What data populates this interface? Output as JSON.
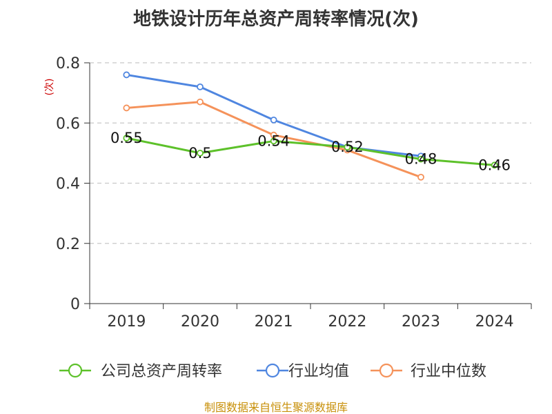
{
  "chart_data": {
    "type": "line",
    "title": "地铁设计历年总资产周转率情况(次)",
    "ylabel": "(次)",
    "xlabel": "",
    "categories": [
      "2019",
      "2020",
      "2021",
      "2022",
      "2023",
      "2024"
    ],
    "ylim": [
      0,
      0.8
    ],
    "yticks": [
      {
        "value": 0,
        "label": "0"
      },
      {
        "value": 0.2,
        "label": "0.2"
      },
      {
        "value": 0.4,
        "label": "0.4"
      },
      {
        "value": 0.6,
        "label": "0.6"
      },
      {
        "value": 0.8,
        "label": "0.8"
      }
    ],
    "grid": true,
    "legend_position": "bottom",
    "series": [
      {
        "name": "公司总资产周转率",
        "color": "#5dc12a",
        "values": [
          0.55,
          0.5,
          0.54,
          0.52,
          0.48,
          0.46
        ],
        "labels": [
          "0.55",
          "0.5",
          "0.54",
          "0.52",
          "0.48",
          "0.46"
        ]
      },
      {
        "name": "行业均值",
        "color": "#4f86e0",
        "values": [
          0.76,
          0.72,
          0.61,
          0.52,
          0.49,
          null
        ],
        "labels": []
      },
      {
        "name": "行业中位数",
        "color": "#f5925a",
        "values": [
          0.65,
          0.67,
          0.56,
          0.51,
          0.42,
          null
        ],
        "labels": []
      }
    ]
  },
  "source": "制图数据来自恒生聚源数据库"
}
